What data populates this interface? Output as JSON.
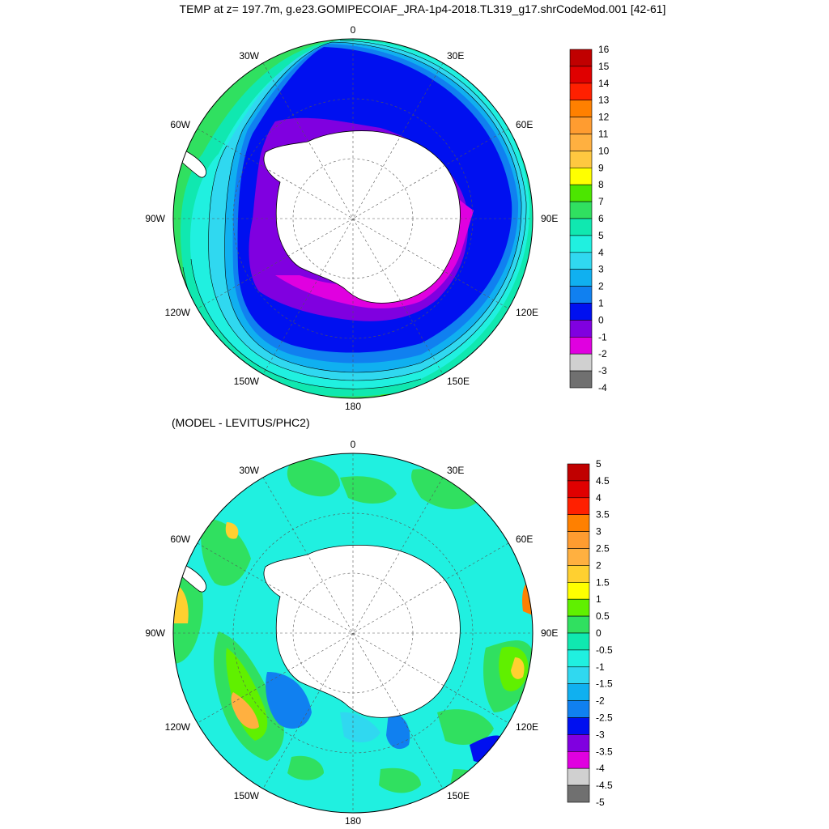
{
  "title": "TEMP at z= 197.7m, g.e23.GOMIPECOIAF_JRA-1p4-2018.TL319_g17.shrCodeMod.001 [42-61]",
  "subtitle": "(MODEL - LEVITUS/PHC2)",
  "longitude_labels": [
    "0",
    "30E",
    "60E",
    "90E",
    "120E",
    "150E",
    "180",
    "150W",
    "120W",
    "90W",
    "60W",
    "30W"
  ],
  "colors": {
    "land": "#ffffff",
    "outline": "#000000",
    "grid": "#555555"
  },
  "maps": [
    {
      "name": "temperature",
      "colorbar": {
        "labels": [
          "16",
          "15",
          "14",
          "13",
          "12",
          "11",
          "10",
          "9",
          "8",
          "7",
          "6",
          "5",
          "4",
          "3",
          "2",
          "1",
          "0",
          "-1",
          "-2",
          "-3",
          "-4"
        ],
        "colors": [
          "#c00000",
          "#e00000",
          "#ff2000",
          "#ff8000",
          "#ff9c30",
          "#ffb040",
          "#ffc840",
          "#ffff00",
          "#4ce600",
          "#30e060",
          "#10e8b0",
          "#20f0e0",
          "#30d8f0",
          "#10b0f0",
          "#1080f0",
          "#0010f0",
          "#8000e0",
          "#e000e0",
          "#d0d0d0",
          "#707070"
        ]
      }
    },
    {
      "name": "anomaly",
      "colorbar": {
        "labels": [
          "5",
          "4.5",
          "4",
          "3.5",
          "3",
          "2.5",
          "2",
          "1.5",
          "1",
          "0.5",
          "0",
          "-0.5",
          "-1",
          "-1.5",
          "-2",
          "-2.5",
          "-3",
          "-3.5",
          "-4",
          "-4.5",
          "-5"
        ],
        "colors": [
          "#c00000",
          "#e00000",
          "#ff2000",
          "#ff8000",
          "#ff9c30",
          "#ffb040",
          "#ffd030",
          "#ffff00",
          "#60f000",
          "#30e060",
          "#10e8b0",
          "#20f0e0",
          "#30d8f0",
          "#10b0f0",
          "#1080f0",
          "#0010f0",
          "#8000e0",
          "#e000e0",
          "#d0d0d0",
          "#707070"
        ]
      }
    }
  ]
}
